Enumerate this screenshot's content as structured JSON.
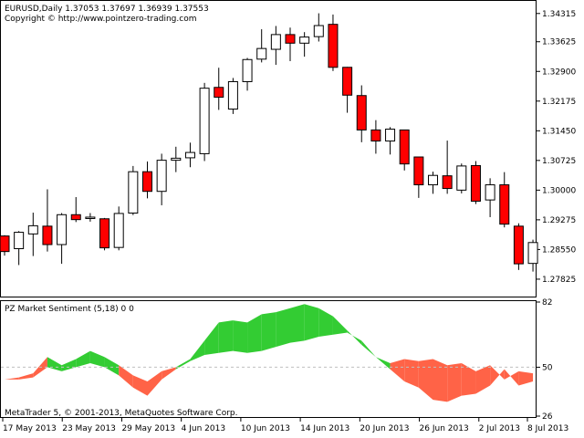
{
  "header": {
    "symbol_line": "EURUSD,Daily  1.37053 1.37697 1.36939 1.37553",
    "copyright_top": "Copyright © http://www.pointzero-trading.com"
  },
  "indicator": {
    "title": "PZ Market Sentiment (5,18) 0 0",
    "scale_labels": [
      "82",
      "50",
      "26"
    ],
    "range": [
      26,
      82
    ],
    "midline": 50,
    "color_up": "#33cc33",
    "color_down": "#ff6347"
  },
  "footer": {
    "copyright": "MetaTrader 5, © 2001-2013, MetaQuotes Software Corp."
  },
  "colors": {
    "bull": "#ffffff",
    "bear": "#ff0000",
    "outline": "#000000",
    "grid": "#c0c0c0"
  },
  "chart_data": [
    {
      "type": "candlestick",
      "symbol": "EURUSD",
      "timeframe": "Daily",
      "ylim": [
        1.274,
        1.346
      ],
      "y_ticks": [
        "1.34315",
        "1.33625",
        "1.32900",
        "1.32175",
        "1.31450",
        "1.30725",
        "1.30000",
        "1.29275",
        "1.28550",
        "1.27825"
      ],
      "x_tick_labels": [
        "17 May 2013",
        "23 May 2013",
        "29 May 2013",
        "4 Jun 2013",
        "10 Jun 2013",
        "14 Jun 2013",
        "20 Jun 2013",
        "26 Jun 2013",
        "2 Jul 2013",
        "8 Jul 2013"
      ],
      "candles": [
        {
          "o": 1.2888,
          "h": 1.289,
          "l": 1.284,
          "c": 1.285
        },
        {
          "o": 1.2857,
          "h": 1.29,
          "l": 1.2817,
          "c": 1.2897
        },
        {
          "o": 1.2893,
          "h": 1.2945,
          "l": 1.2839,
          "c": 1.2913
        },
        {
          "o": 1.2912,
          "h": 1.3002,
          "l": 1.285,
          "c": 1.2867
        },
        {
          "o": 1.2867,
          "h": 1.2944,
          "l": 1.282,
          "c": 1.294
        },
        {
          "o": 1.294,
          "h": 1.2983,
          "l": 1.2922,
          "c": 1.2928
        },
        {
          "o": 1.2933,
          "h": 1.2944,
          "l": 1.2923,
          "c": 1.2934
        },
        {
          "o": 1.293,
          "h": 1.2932,
          "l": 1.2853,
          "c": 1.2859
        },
        {
          "o": 1.286,
          "h": 1.296,
          "l": 1.2853,
          "c": 1.2943
        },
        {
          "o": 1.2944,
          "h": 1.3059,
          "l": 1.2939,
          "c": 1.3045
        },
        {
          "o": 1.3045,
          "h": 1.307,
          "l": 1.298,
          "c": 1.2997
        },
        {
          "o": 1.2997,
          "h": 1.3089,
          "l": 1.2963,
          "c": 1.3073
        },
        {
          "o": 1.3073,
          "h": 1.3106,
          "l": 1.3044,
          "c": 1.3078
        },
        {
          "o": 1.3079,
          "h": 1.3116,
          "l": 1.3056,
          "c": 1.3092
        },
        {
          "o": 1.3089,
          "h": 1.3262,
          "l": 1.3071,
          "c": 1.3249
        },
        {
          "o": 1.3251,
          "h": 1.3299,
          "l": 1.3196,
          "c": 1.3227
        },
        {
          "o": 1.3198,
          "h": 1.3274,
          "l": 1.3186,
          "c": 1.3265
        },
        {
          "o": 1.3265,
          "h": 1.3323,
          "l": 1.3243,
          "c": 1.3319
        },
        {
          "o": 1.332,
          "h": 1.3393,
          "l": 1.3312,
          "c": 1.3346
        },
        {
          "o": 1.3344,
          "h": 1.3401,
          "l": 1.3306,
          "c": 1.338
        },
        {
          "o": 1.338,
          "h": 1.3397,
          "l": 1.3315,
          "c": 1.3359
        },
        {
          "o": 1.3359,
          "h": 1.3386,
          "l": 1.3326,
          "c": 1.3374
        },
        {
          "o": 1.3375,
          "h": 1.3432,
          "l": 1.3363,
          "c": 1.3402
        },
        {
          "o": 1.3405,
          "h": 1.3429,
          "l": 1.3291,
          "c": 1.33
        },
        {
          "o": 1.33,
          "h": 1.3301,
          "l": 1.3189,
          "c": 1.3232
        },
        {
          "o": 1.3231,
          "h": 1.3256,
          "l": 1.3117,
          "c": 1.3147
        },
        {
          "o": 1.3147,
          "h": 1.3171,
          "l": 1.3089,
          "c": 1.312
        },
        {
          "o": 1.312,
          "h": 1.3154,
          "l": 1.3087,
          "c": 1.3149
        },
        {
          "o": 1.3147,
          "h": 1.3147,
          "l": 1.3048,
          "c": 1.3064
        },
        {
          "o": 1.3081,
          "h": 1.308,
          "l": 1.2981,
          "c": 1.3013
        },
        {
          "o": 1.3013,
          "h": 1.3045,
          "l": 1.2991,
          "c": 1.3036
        },
        {
          "o": 1.3035,
          "h": 1.3121,
          "l": 1.2991,
          "c": 1.3004
        },
        {
          "o": 1.3,
          "h": 1.3065,
          "l": 1.2992,
          "c": 1.3059
        },
        {
          "o": 1.306,
          "h": 1.3071,
          "l": 1.2966,
          "c": 1.2973
        },
        {
          "o": 1.2976,
          "h": 1.3029,
          "l": 1.2934,
          "c": 1.3013
        },
        {
          "o": 1.3013,
          "h": 1.3044,
          "l": 1.2909,
          "c": 1.2917
        },
        {
          "o": 1.2912,
          "h": 1.2919,
          "l": 1.2805,
          "c": 1.282
        },
        {
          "o": 1.2821,
          "h": 1.2879,
          "l": 1.2801,
          "c": 1.2872
        }
      ]
    },
    {
      "type": "area",
      "name": "PZ Market Sentiment (5,18) 0 0",
      "ylim": [
        26,
        82
      ],
      "midline": 50,
      "series": [
        {
          "name": "upper",
          "values": [
            44,
            45,
            47,
            55,
            51,
            54,
            58,
            55,
            51,
            46,
            43,
            48,
            50,
            54,
            63,
            72,
            73,
            72,
            76,
            77,
            79,
            81,
            79,
            75,
            68,
            61,
            55,
            52,
            54,
            53,
            54,
            51,
            52,
            48,
            51,
            44,
            48,
            47
          ]
        },
        {
          "name": "lower",
          "values": [
            44,
            44,
            45,
            50,
            48,
            50,
            52,
            50,
            46,
            40,
            36,
            44,
            49,
            53,
            56,
            57,
            58,
            57,
            58,
            60,
            62,
            63,
            65,
            66,
            67,
            63,
            55,
            49,
            43,
            40,
            34,
            33,
            36,
            37,
            41,
            49,
            41,
            43
          ]
        }
      ]
    }
  ]
}
